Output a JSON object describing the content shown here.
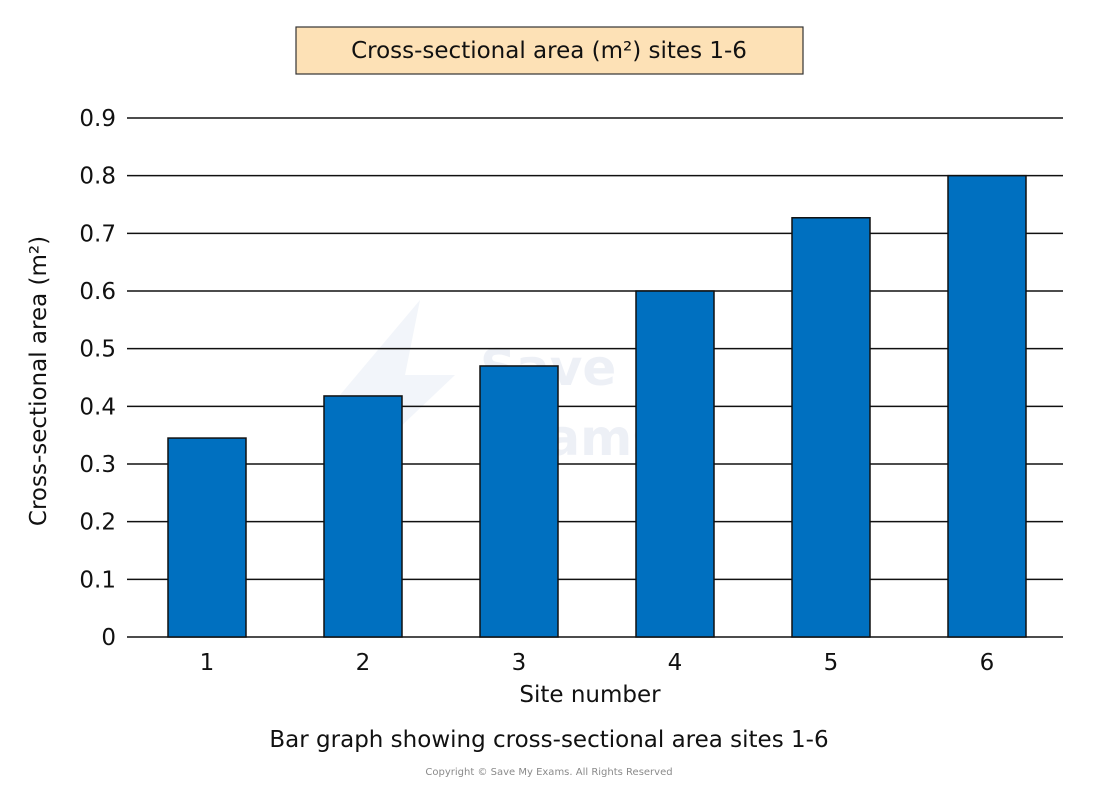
{
  "chart_data": {
    "type": "bar",
    "title": "Cross-sectional area (m²) sites 1-6",
    "xlabel": "Site number",
    "ylabel": "Cross-sectional area (m²)",
    "categories": [
      "1",
      "2",
      "3",
      "4",
      "5",
      "6"
    ],
    "values": [
      0.345,
      0.418,
      0.47,
      0.6,
      0.727,
      0.8
    ],
    "ylim": [
      0,
      0.9
    ],
    "yticks": [
      "0",
      "0.1",
      "0.2",
      "0.3",
      "0.4",
      "0.5",
      "0.6",
      "0.7",
      "0.8",
      "0.9"
    ],
    "grid": true,
    "legend": "none"
  },
  "caption": "Bar graph showing cross-sectional area sites 1-6",
  "copyright": "Copyright © Save My Exams. All Rights Reserved",
  "watermark": {
    "line1": "Save My",
    "line2": "Exams"
  },
  "colors": {
    "bar": "#0070c0",
    "bar_stroke": "#111111",
    "title_box_fill": "#fde1b6",
    "title_box_stroke": "#333333",
    "grid": "#111111"
  }
}
